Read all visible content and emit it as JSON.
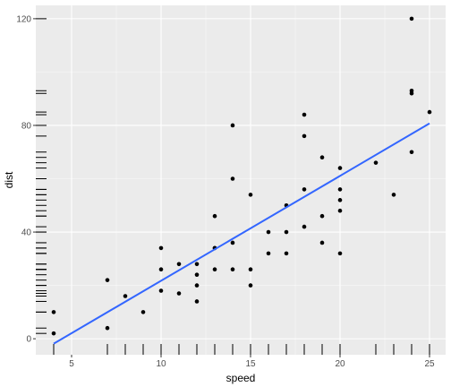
{
  "chart_data": {
    "type": "scatter",
    "title": "",
    "xlabel": "speed",
    "ylabel": "dist",
    "xlim": [
      3.0,
      25.9
    ],
    "ylim": [
      -6.0,
      125.0
    ],
    "x_ticks": [
      5,
      10,
      15,
      20,
      25
    ],
    "y_ticks": [
      0,
      40,
      80,
      120
    ],
    "grid": true,
    "legend": "none",
    "points": [
      {
        "x": 4,
        "y": 2
      },
      {
        "x": 4,
        "y": 10
      },
      {
        "x": 7,
        "y": 4
      },
      {
        "x": 7,
        "y": 22
      },
      {
        "x": 8,
        "y": 16
      },
      {
        "x": 9,
        "y": 10
      },
      {
        "x": 10,
        "y": 18
      },
      {
        "x": 10,
        "y": 26
      },
      {
        "x": 10,
        "y": 34
      },
      {
        "x": 11,
        "y": 17
      },
      {
        "x": 11,
        "y": 28
      },
      {
        "x": 12,
        "y": 14
      },
      {
        "x": 12,
        "y": 20
      },
      {
        "x": 12,
        "y": 24
      },
      {
        "x": 12,
        "y": 28
      },
      {
        "x": 13,
        "y": 26
      },
      {
        "x": 13,
        "y": 34
      },
      {
        "x": 13,
        "y": 34
      },
      {
        "x": 13,
        "y": 46
      },
      {
        "x": 14,
        "y": 26
      },
      {
        "x": 14,
        "y": 36
      },
      {
        "x": 14,
        "y": 60
      },
      {
        "x": 14,
        "y": 80
      },
      {
        "x": 15,
        "y": 20
      },
      {
        "x": 15,
        "y": 26
      },
      {
        "x": 15,
        "y": 54
      },
      {
        "x": 16,
        "y": 32
      },
      {
        "x": 16,
        "y": 40
      },
      {
        "x": 17,
        "y": 32
      },
      {
        "x": 17,
        "y": 40
      },
      {
        "x": 17,
        "y": 50
      },
      {
        "x": 18,
        "y": 42
      },
      {
        "x": 18,
        "y": 56
      },
      {
        "x": 18,
        "y": 76
      },
      {
        "x": 18,
        "y": 84
      },
      {
        "x": 19,
        "y": 36
      },
      {
        "x": 19,
        "y": 46
      },
      {
        "x": 19,
        "y": 68
      },
      {
        "x": 20,
        "y": 32
      },
      {
        "x": 20,
        "y": 48
      },
      {
        "x": 20,
        "y": 52
      },
      {
        "x": 20,
        "y": 56
      },
      {
        "x": 20,
        "y": 64
      },
      {
        "x": 22,
        "y": 66
      },
      {
        "x": 23,
        "y": 54
      },
      {
        "x": 24,
        "y": 70
      },
      {
        "x": 24,
        "y": 92
      },
      {
        "x": 24,
        "y": 93
      },
      {
        "x": 24,
        "y": 120
      },
      {
        "x": 25,
        "y": 85
      }
    ],
    "fit_line": {
      "method": "lm",
      "intercept": -17.5791,
      "slope": 3.9324,
      "x_range": [
        4,
        25
      ]
    },
    "rugs": {
      "x_sides": "bottom",
      "y_sides": "left"
    },
    "colors": {
      "panel": "#ebebeb",
      "grid_major": "#ffffff",
      "points": "#000000",
      "fit_line": "#3366ff",
      "rug": "#000000",
      "tick_label": "#4d4d4d",
      "axis_title": "#000000"
    }
  }
}
